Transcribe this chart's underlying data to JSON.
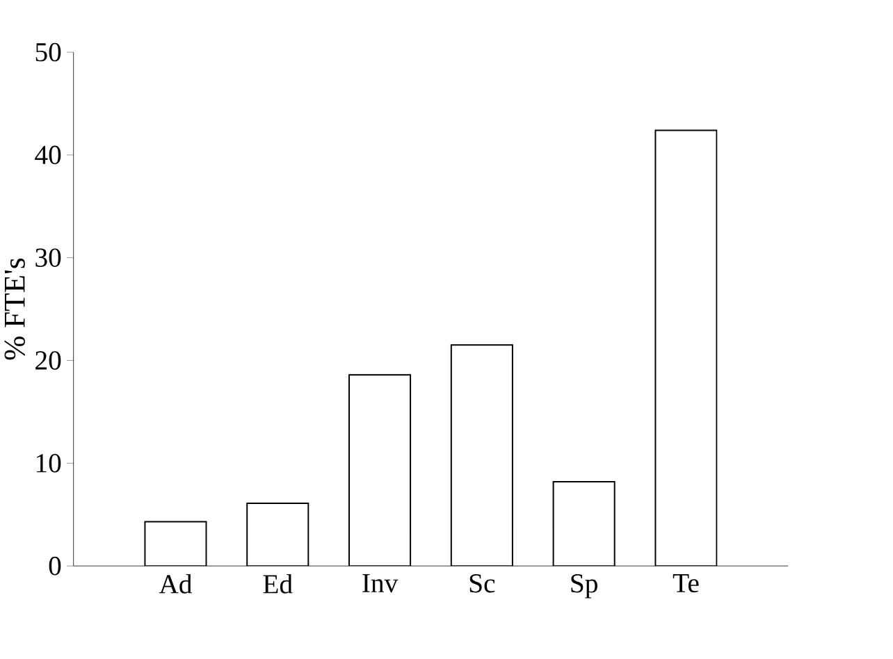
{
  "chart_data": {
    "type": "bar",
    "ylabel": "% FTE's",
    "categories": [
      "Ad",
      "Ed",
      "Inv",
      "Sc",
      "Sp",
      "Te"
    ],
    "values": [
      4.3,
      6.1,
      18.6,
      21.5,
      8.2,
      42.4
    ],
    "color": "#ffffff",
    "ylim": [
      0,
      50
    ],
    "yticks": [
      0,
      10,
      20,
      30,
      40,
      50
    ],
    "grid": false
  }
}
